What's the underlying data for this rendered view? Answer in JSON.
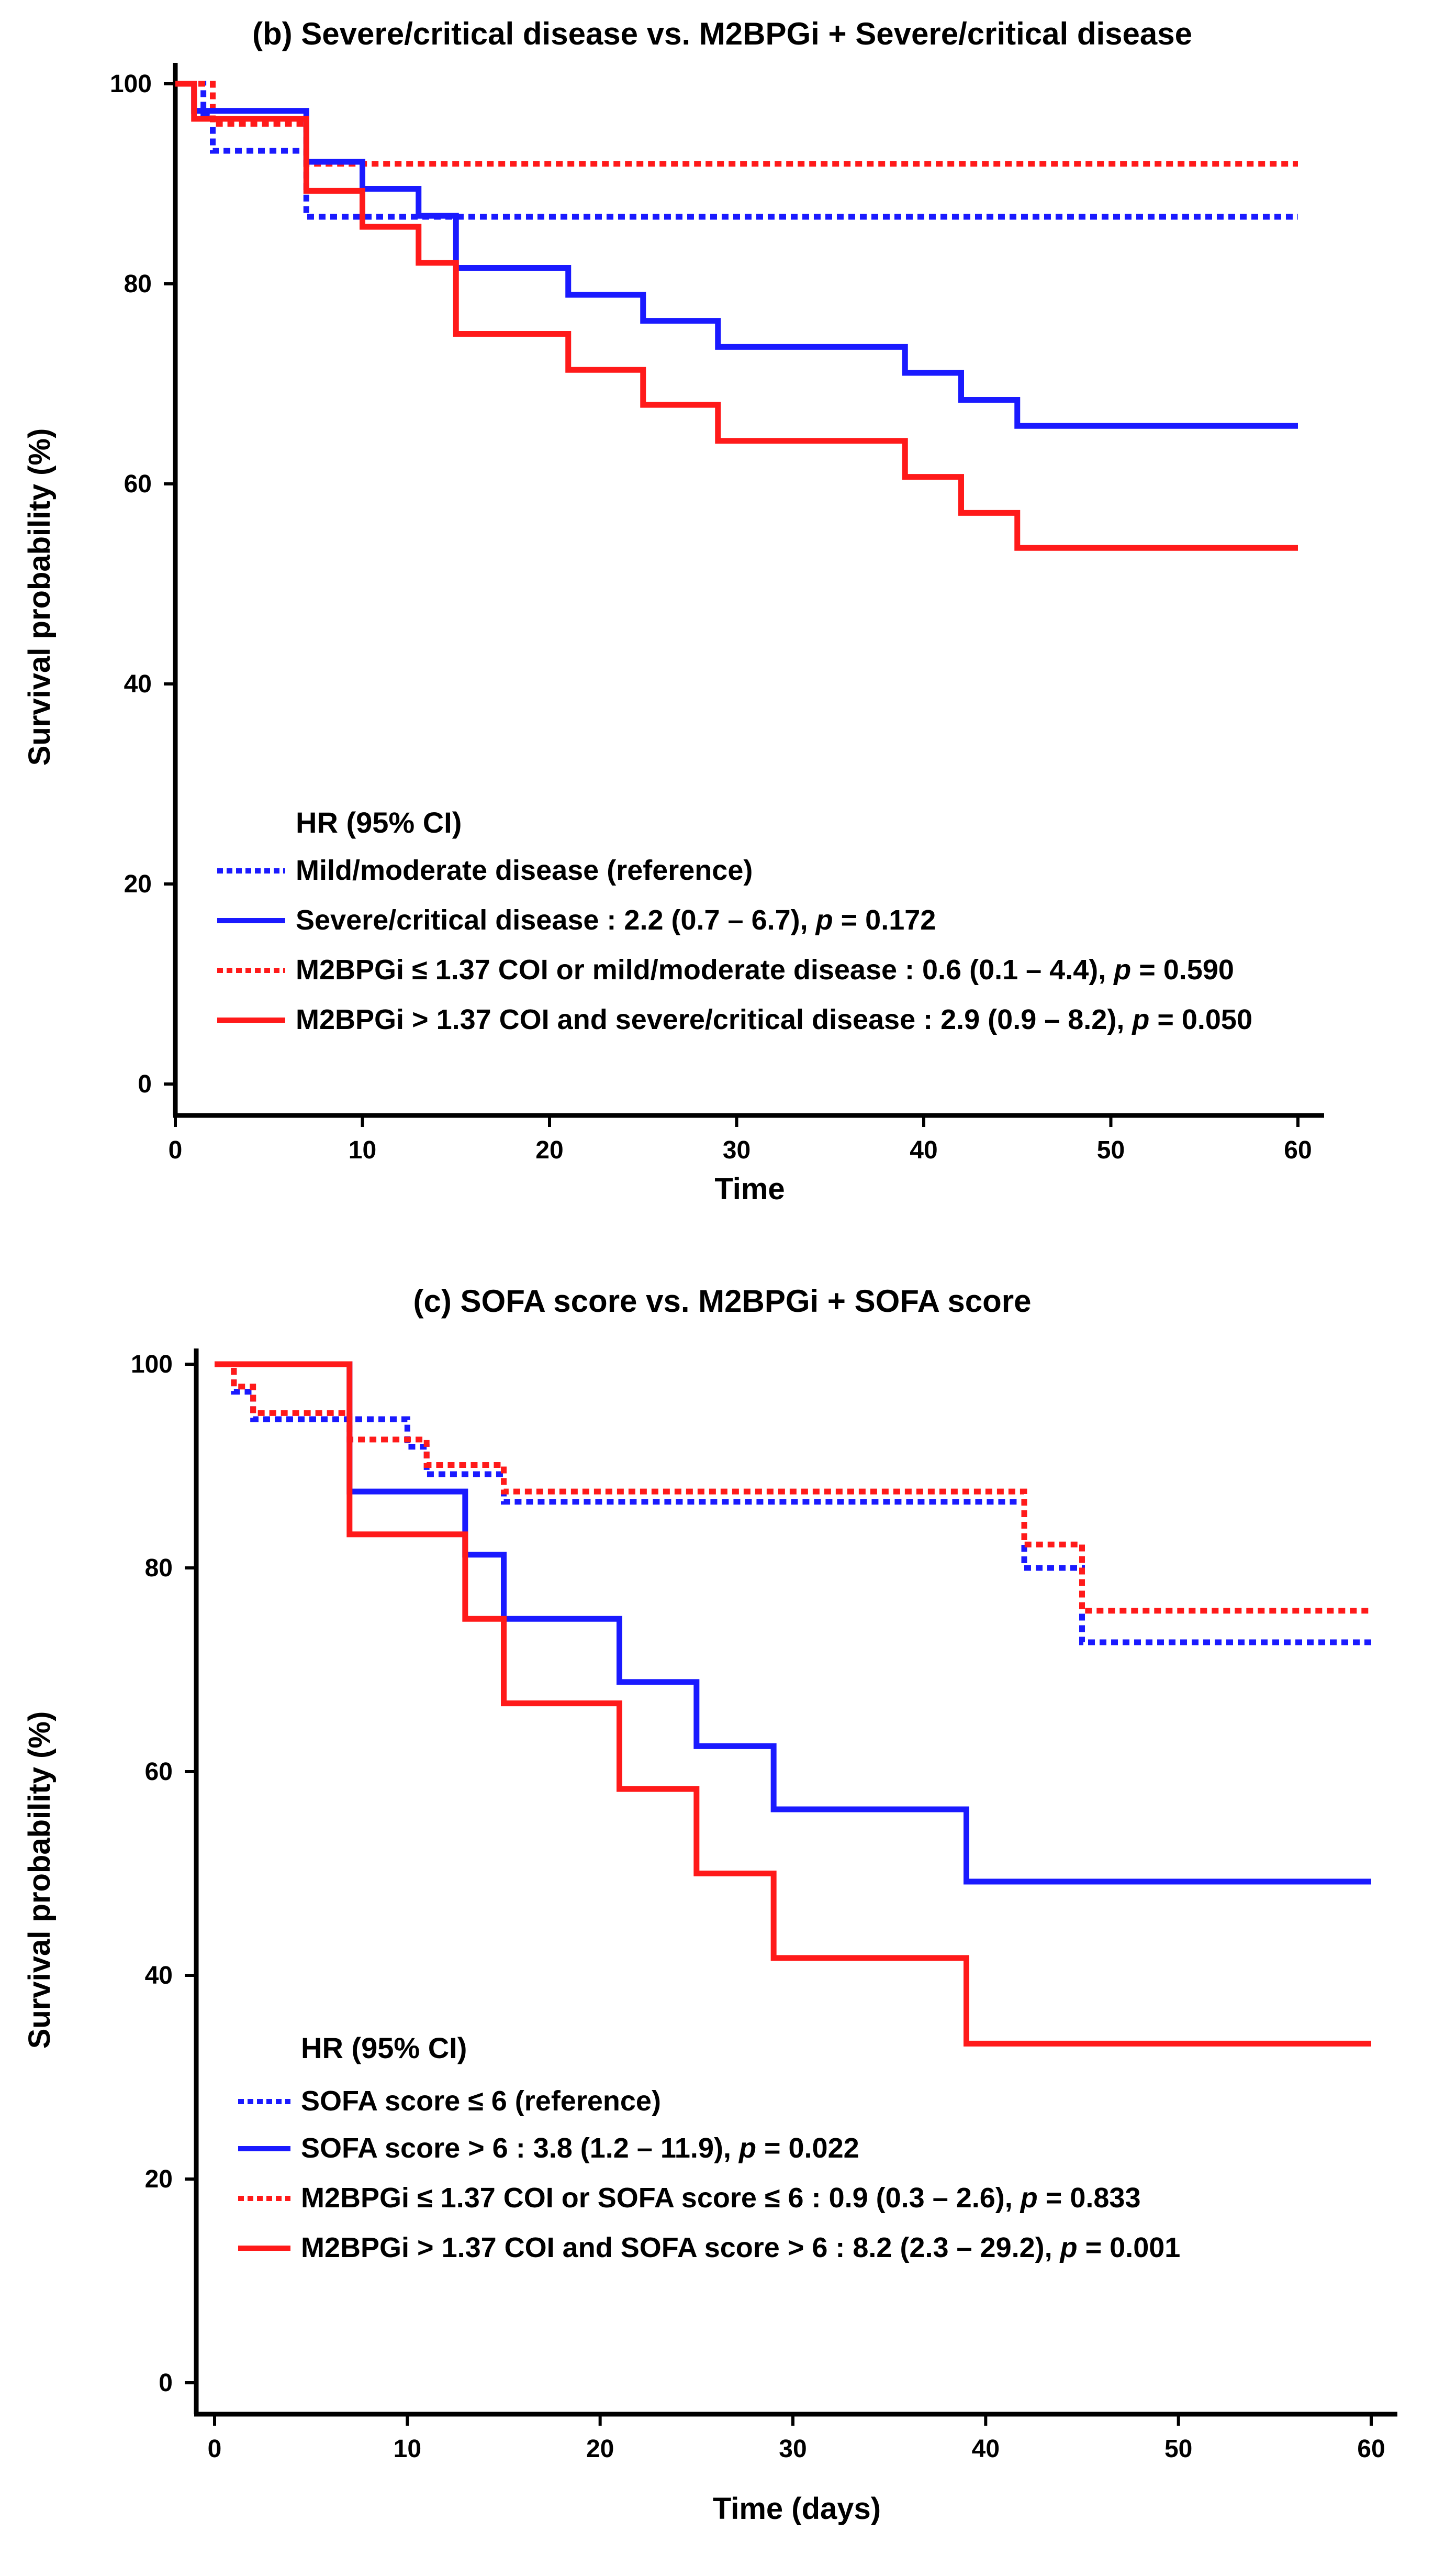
{
  "chart_data": [
    {
      "type": "line",
      "subtype": "kaplan-meier",
      "title": "(b) Severe/critical disease vs. M2BPGi + Severe/critical disease",
      "xlabel": "Time",
      "ylabel": "Survival probability (%)",
      "xlim": [
        0,
        60
      ],
      "ylim": [
        0,
        100
      ],
      "xticks": [
        "0",
        "10",
        "20",
        "30",
        "40",
        "50",
        "60"
      ],
      "yticks": [
        "0",
        "20",
        "40",
        "60",
        "80",
        "100"
      ],
      "legend_title": "HR (95% CI)",
      "series": [
        {
          "name": "Mild/moderate disease (reference)",
          "color": "#1a1aff",
          "style": "dotted",
          "steps": [
            [
              0,
              100
            ],
            [
              1.5,
              97
            ],
            [
              2,
              93.3
            ],
            [
              7,
              86.7
            ],
            [
              60,
              86.7
            ]
          ]
        },
        {
          "name": "Severe/critical disease",
          "hr_text": " : 2.2 (0.7 – 6.7), ",
          "p_text": " = 0.172",
          "color": "#1a1aff",
          "style": "solid",
          "steps": [
            [
              0,
              100
            ],
            [
              1,
              97.3
            ],
            [
              7,
              92.2
            ],
            [
              10,
              89.5
            ],
            [
              13,
              86.8
            ],
            [
              15,
              81.6
            ],
            [
              21,
              78.9
            ],
            [
              25,
              76.3
            ],
            [
              29,
              73.7
            ],
            [
              39,
              71.1
            ],
            [
              42,
              68.4
            ],
            [
              45,
              65.8
            ],
            [
              60,
              65.8
            ]
          ]
        },
        {
          "name": "M2BPGi ≤ 1.37 COI or mild/moderate disease",
          "hr_text": " : 0.6 (0.1 – 4.4), ",
          "p_text": " = 0.590",
          "color": "#ff1a1a",
          "style": "dotted",
          "steps": [
            [
              0,
              100
            ],
            [
              2,
              96
            ],
            [
              7,
              92
            ],
            [
              60,
              92
            ]
          ]
        },
        {
          "name": "M2BPGi > 1.37 COI and severe/critical disease",
          "hr_text": " : 2.9 (0.9 – 8.2), ",
          "p_text": " = 0.050",
          "color": "#ff1a1a",
          "style": "solid",
          "steps": [
            [
              0,
              100
            ],
            [
              1,
              96.5
            ],
            [
              7,
              89.3
            ],
            [
              10,
              85.7
            ],
            [
              13,
              82.1
            ],
            [
              15,
              75
            ],
            [
              21,
              71.4
            ],
            [
              25,
              67.9
            ],
            [
              29,
              64.3
            ],
            [
              39,
              60.7
            ],
            [
              42,
              57.1
            ],
            [
              45,
              53.6
            ],
            [
              60,
              53.6
            ]
          ]
        }
      ]
    },
    {
      "type": "line",
      "subtype": "kaplan-meier",
      "title": "(c) SOFA score vs. M2BPGi + SOFA score",
      "xlabel": "Time (days)",
      "ylabel": "Survival probability (%)",
      "xlim": [
        0,
        60
      ],
      "ylim": [
        0,
        100
      ],
      "xticks": [
        "0",
        "10",
        "20",
        "30",
        "40",
        "50",
        "60"
      ],
      "yticks": [
        "0",
        "20",
        "40",
        "60",
        "80",
        "100"
      ],
      "legend_title": "HR (95% CI)",
      "series": [
        {
          "name": "SOFA score ≤ 6 (reference)",
          "color": "#1a1aff",
          "style": "dotted",
          "steps": [
            [
              0,
              100
            ],
            [
              1,
              97.3
            ],
            [
              2,
              94.6
            ],
            [
              10,
              91.9
            ],
            [
              11,
              89.2
            ],
            [
              15,
              86.5
            ],
            [
              42,
              80
            ],
            [
              45,
              72.7
            ],
            [
              60,
              72.7
            ]
          ]
        },
        {
          "name": "SOFA score > 6",
          "hr_text": " : 3.8 (1.2 – 11.9), ",
          "p_text": " = 0.022",
          "color": "#1a1aff",
          "style": "solid",
          "steps": [
            [
              0,
              100
            ],
            [
              7,
              87.5
            ],
            [
              13,
              81.3
            ],
            [
              15,
              75
            ],
            [
              21,
              68.8
            ],
            [
              25,
              62.5
            ],
            [
              29,
              56.3
            ],
            [
              39,
              49.2
            ],
            [
              60,
              49.2
            ]
          ]
        },
        {
          "name": "M2BPGi ≤ 1.37 COI or SOFA score ≤ 6",
          "hr_text": " : 0.9 (0.3 – 2.6), ",
          "p_text": " = 0.833",
          "color": "#ff1a1a",
          "style": "dotted",
          "steps": [
            [
              0,
              100
            ],
            [
              1,
              97.8
            ],
            [
              2,
              95.2
            ],
            [
              7,
              92.6
            ],
            [
              10,
              92.6
            ],
            [
              11,
              90.1
            ],
            [
              15,
              87.5
            ],
            [
              42,
              82.3
            ],
            [
              45,
              75.8
            ],
            [
              60,
              75.8
            ]
          ]
        },
        {
          "name": "M2BPGi > 1.37 COI and SOFA score > 6",
          "hr_text": " : 8.2 (2.3 – 29.2), ",
          "p_text": " = 0.001",
          "color": "#ff1a1a",
          "style": "solid",
          "steps": [
            [
              0,
              100
            ],
            [
              7,
              83.3
            ],
            [
              13,
              75
            ],
            [
              15,
              66.7
            ],
            [
              21,
              58.3
            ],
            [
              25,
              50
            ],
            [
              29,
              41.7
            ],
            [
              39,
              33.3
            ],
            [
              60,
              33.3
            ]
          ]
        }
      ]
    }
  ],
  "p_symbol": "p"
}
